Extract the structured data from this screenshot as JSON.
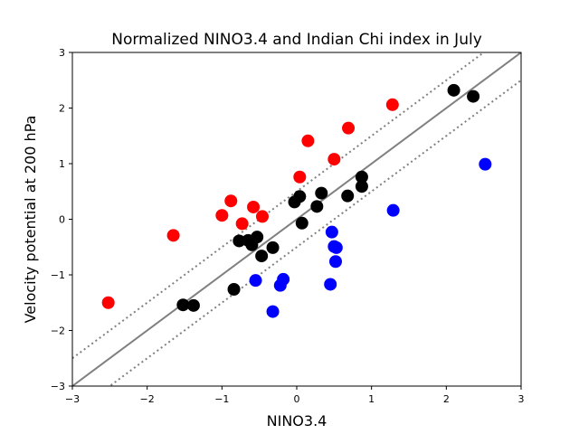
{
  "chart_data": {
    "type": "scatter",
    "title": "Normalized NINO3.4 and Indian Chi index in July",
    "xlabel": "NINO3.4",
    "ylabel": "Velocity potential at 200 hPa",
    "xlim": [
      -3,
      3
    ],
    "ylim": [
      -3,
      3
    ],
    "xticks": [
      -3,
      -2,
      -1,
      0,
      1,
      2,
      3
    ],
    "yticks": [
      -3,
      -2,
      -1,
      0,
      1,
      2,
      3
    ],
    "xtick_labels": [
      "−3",
      "−2",
      "−1",
      "0",
      "1",
      "2",
      "3"
    ],
    "ytick_labels": [
      "−3",
      "−2",
      "−1",
      "0",
      "1",
      "2",
      "3"
    ],
    "grid": false,
    "lines": [
      {
        "style": "solid",
        "color": "#808080",
        "slope": 1,
        "intercept": 0
      },
      {
        "style": "dotted",
        "color": "#808080",
        "slope": 1,
        "intercept": 0.5
      },
      {
        "style": "dotted",
        "color": "#808080",
        "slope": 1,
        "intercept": -0.5
      }
    ],
    "series": [
      {
        "color": "#ff0000",
        "points": [
          [
            -2.52,
            -1.5
          ],
          [
            -1.65,
            -0.29
          ],
          [
            -1.0,
            0.07
          ],
          [
            -0.88,
            0.33
          ],
          [
            -0.73,
            -0.08
          ],
          [
            -0.58,
            0.22
          ],
          [
            -0.46,
            0.05
          ],
          [
            0.04,
            0.76
          ],
          [
            0.15,
            1.41
          ],
          [
            0.5,
            1.08
          ],
          [
            0.69,
            1.64
          ],
          [
            1.28,
            2.06
          ]
        ]
      },
      {
        "color": "#000000",
        "points": [
          [
            -1.52,
            -1.54
          ],
          [
            -1.38,
            -1.55
          ],
          [
            -0.84,
            -1.26
          ],
          [
            -0.77,
            -0.39
          ],
          [
            -0.65,
            -0.38
          ],
          [
            -0.6,
            -0.46
          ],
          [
            -0.53,
            -0.32
          ],
          [
            -0.47,
            -0.66
          ],
          [
            -0.32,
            -0.51
          ],
          [
            -0.03,
            0.31
          ],
          [
            0.04,
            0.41
          ],
          [
            0.07,
            -0.07
          ],
          [
            0.27,
            0.23
          ],
          [
            0.33,
            0.47
          ],
          [
            0.68,
            0.42
          ],
          [
            0.87,
            0.76
          ],
          [
            0.87,
            0.59
          ],
          [
            2.1,
            2.32
          ],
          [
            2.36,
            2.21
          ]
        ]
      },
      {
        "color": "#0000ff",
        "points": [
          [
            -0.55,
            -1.1
          ],
          [
            -0.32,
            -1.66
          ],
          [
            -0.22,
            -1.19
          ],
          [
            -0.18,
            -1.08
          ],
          [
            0.45,
            -1.17
          ],
          [
            0.47,
            -0.23
          ],
          [
            0.5,
            -0.49
          ],
          [
            0.52,
            -0.76
          ],
          [
            0.53,
            -0.51
          ],
          [
            1.29,
            0.16
          ],
          [
            2.52,
            0.99
          ]
        ]
      }
    ]
  }
}
